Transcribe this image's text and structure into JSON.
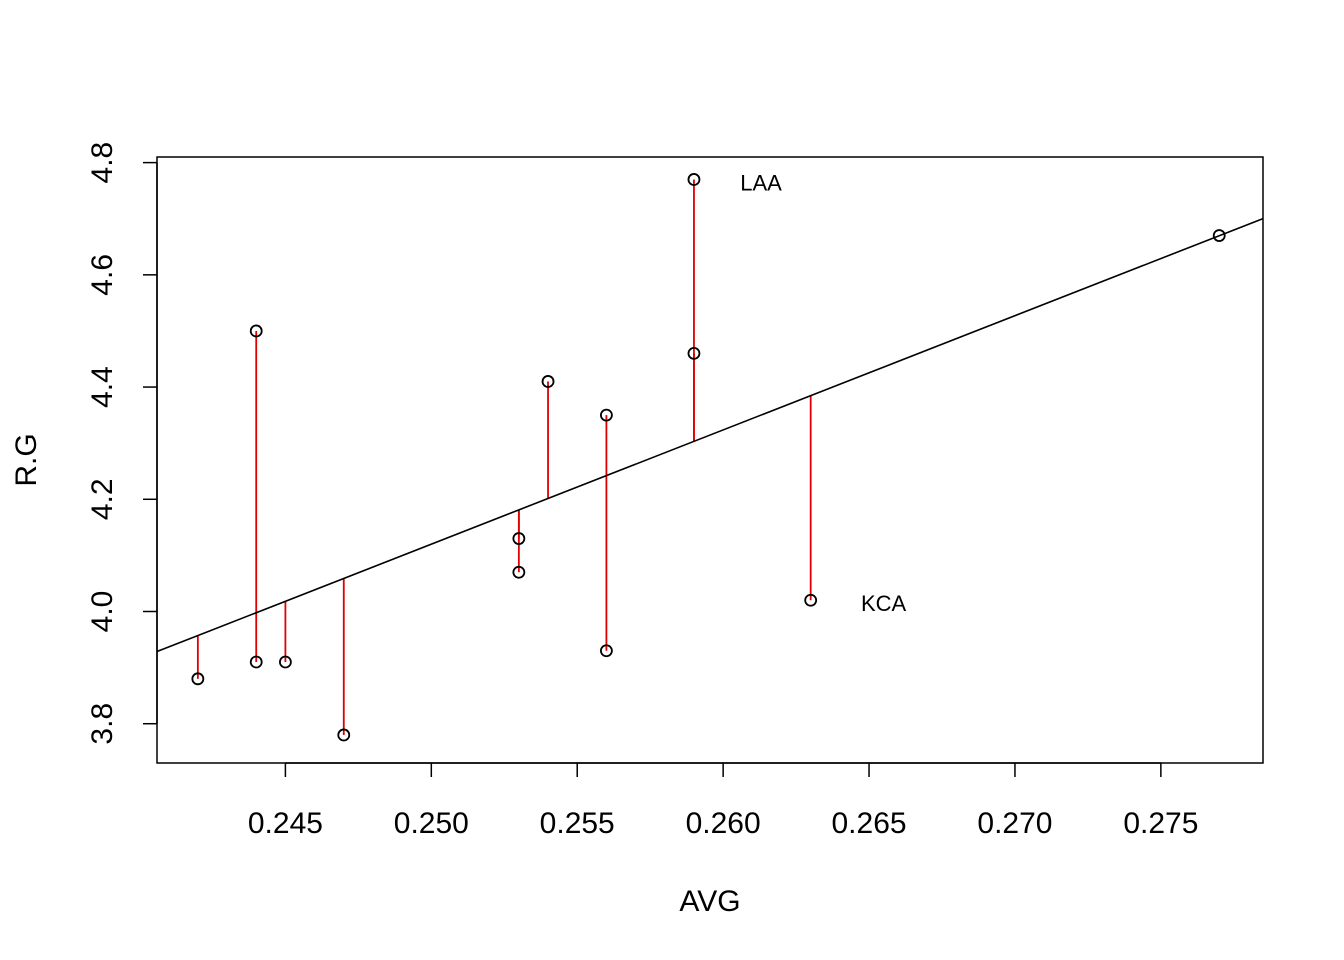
{
  "chart_data": {
    "type": "scatter",
    "title": "",
    "xlabel": "AVG",
    "ylabel": "R.G",
    "xlim": [
      0.2406,
      0.2785
    ],
    "ylim": [
      3.73,
      4.81
    ],
    "x_ticks": [
      "0.245",
      "0.250",
      "0.255",
      "0.260",
      "0.265",
      "0.270",
      "0.275"
    ],
    "y_ticks": [
      "3.8",
      "4.0",
      "4.2",
      "4.4",
      "4.6",
      "4.8"
    ],
    "points": [
      {
        "x": 0.242,
        "y": 3.88
      },
      {
        "x": 0.244,
        "y": 3.91
      },
      {
        "x": 0.244,
        "y": 4.5
      },
      {
        "x": 0.245,
        "y": 3.91
      },
      {
        "x": 0.247,
        "y": 3.78
      },
      {
        "x": 0.253,
        "y": 4.07
      },
      {
        "x": 0.253,
        "y": 4.13
      },
      {
        "x": 0.254,
        "y": 4.41
      },
      {
        "x": 0.256,
        "y": 3.93
      },
      {
        "x": 0.256,
        "y": 4.35
      },
      {
        "x": 0.259,
        "y": 4.46
      },
      {
        "x": 0.259,
        "y": 4.77
      },
      {
        "x": 0.263,
        "y": 4.02
      },
      {
        "x": 0.277,
        "y": 4.67
      }
    ],
    "regression_line": {
      "intercept": -0.97,
      "slope": 20.36
    },
    "residual_color": "#e00000",
    "line_color": "#000000",
    "point_color": "#000000",
    "annotations": [
      {
        "text": "LAA",
        "x": 0.2613,
        "y": 4.765
      },
      {
        "text": "KCA",
        "x": 0.2655,
        "y": 4.015
      }
    ],
    "grid": false
  }
}
